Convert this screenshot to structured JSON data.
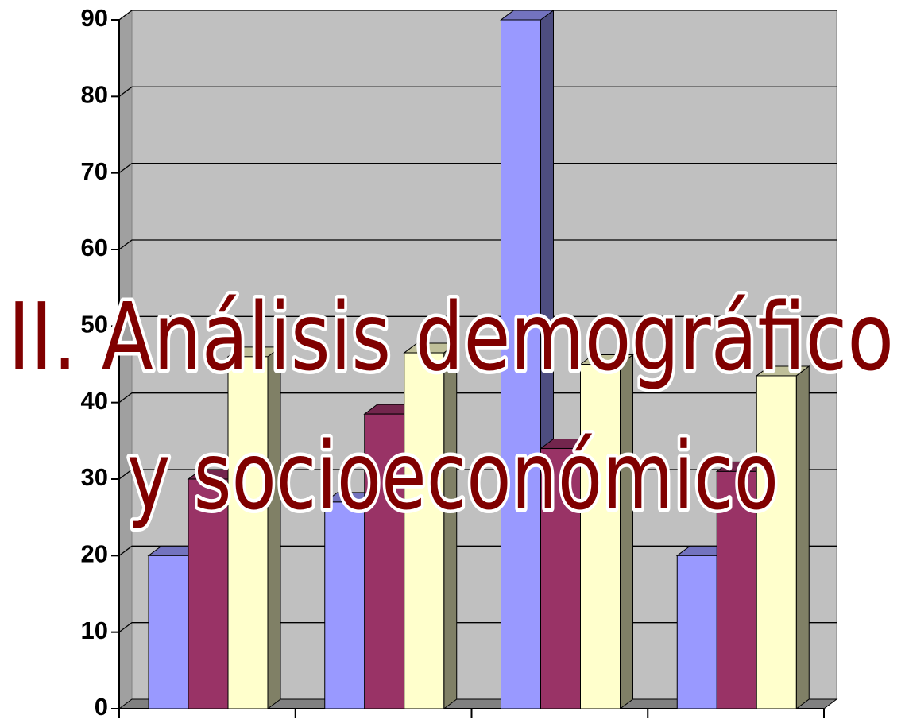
{
  "chart_data": {
    "type": "bar3d",
    "categories": [
      null,
      null,
      null,
      null
    ],
    "series": [
      {
        "name": null,
        "color": "#9999ff",
        "values": [
          20,
          27,
          90,
          20
        ]
      },
      {
        "name": null,
        "color": "#993366",
        "values": [
          30,
          38.5,
          34,
          31
        ]
      },
      {
        "name": null,
        "color": "#ffffcc",
        "values": [
          46,
          46.5,
          45,
          43.5
        ]
      }
    ],
    "ylim": [
      0,
      90
    ],
    "yticks": [
      0,
      10,
      20,
      30,
      40,
      50,
      60,
      70,
      80,
      90
    ],
    "grid": true,
    "annotations": [
      "II. Análisis demográfico",
      "y socioeconómico"
    ]
  }
}
